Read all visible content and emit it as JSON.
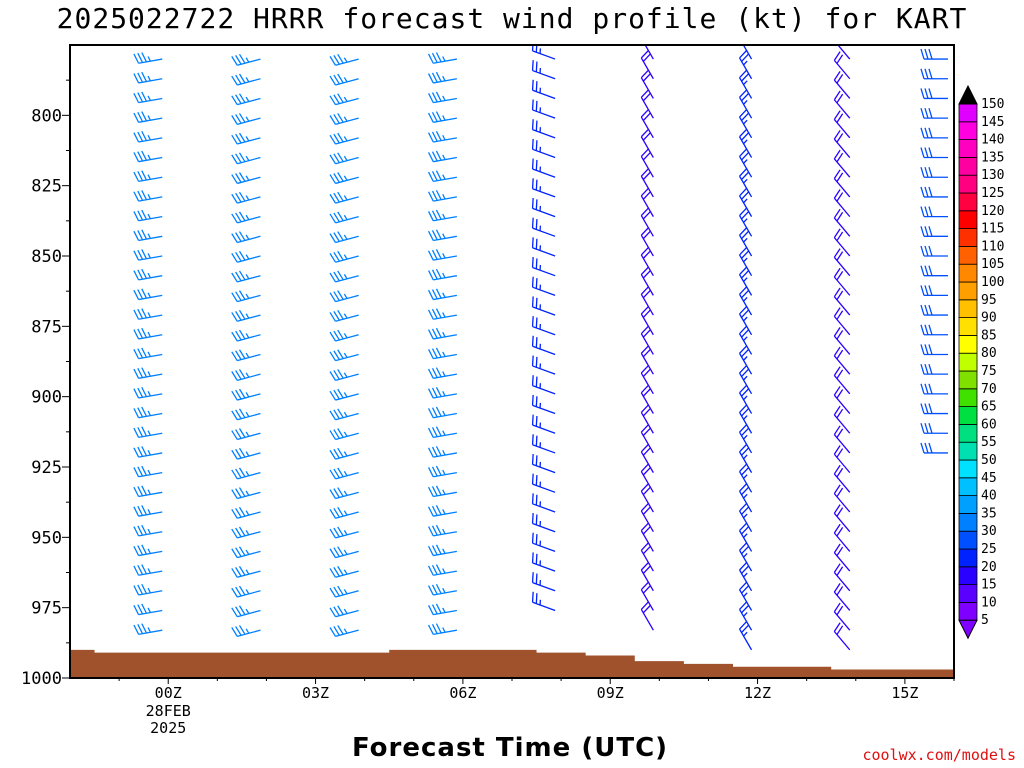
{
  "title": "2025022722 HRRR forecast wind profile (kt) for KART",
  "xlabel": "Forecast Time (UTC)",
  "credit": "coolwx.com/models",
  "chart_data": {
    "type": "wind_profile",
    "title": "2025022722 HRRR forecast wind profile (kt) for KART",
    "xlabel": "Forecast Time (UTC)",
    "y_axis": {
      "label": "",
      "ticks": [
        800,
        825,
        850,
        875,
        900,
        925,
        950,
        975,
        1000
      ],
      "range": [
        775,
        1000
      ],
      "inverted": true
    },
    "x_axis": {
      "ticks": [
        {
          "hour": 0,
          "label": "00Z",
          "sub": [
            "28FEB",
            "2025"
          ]
        },
        {
          "hour": 3,
          "label": "03Z"
        },
        {
          "hour": 6,
          "label": "06Z"
        },
        {
          "hour": 9,
          "label": "09Z"
        },
        {
          "hour": 12,
          "label": "12Z"
        },
        {
          "hour": 15,
          "label": "15Z"
        }
      ],
      "range": [
        -2,
        16
      ]
    },
    "colorbar": {
      "unit": "kt",
      "levels": [
        5,
        10,
        15,
        20,
        25,
        30,
        35,
        40,
        45,
        50,
        55,
        60,
        65,
        70,
        75,
        80,
        85,
        90,
        95,
        100,
        105,
        110,
        115,
        120,
        125,
        130,
        135,
        140,
        145,
        150
      ],
      "colors": [
        "#8000ff",
        "#5a00ff",
        "#2a00ff",
        "#0022ff",
        "#0050ff",
        "#0080ff",
        "#00a0ff",
        "#00c0ff",
        "#00e0ff",
        "#00e0b0",
        "#00e080",
        "#00e040",
        "#40e000",
        "#80e000",
        "#c0ff00",
        "#ffff00",
        "#ffe000",
        "#ffc000",
        "#ffa000",
        "#ff8800",
        "#ff6000",
        "#ff3000",
        "#ff0000",
        "#ff0040",
        "#ff0080",
        "#ff00a0",
        "#ff00c0",
        "#ff00e0",
        "#e000ff",
        "#000000"
      ]
    },
    "terrain_color": "#a0522d",
    "surface_pressure": [
      {
        "hour": -2.0,
        "p": 990
      },
      {
        "hour": -1.5,
        "p": 991
      },
      {
        "hour": 4.5,
        "p": 990
      },
      {
        "hour": 7.5,
        "p": 991
      },
      {
        "hour": 8.5,
        "p": 992
      },
      {
        "hour": 9.5,
        "p": 994
      },
      {
        "hour": 10.5,
        "p": 995
      },
      {
        "hour": 11.5,
        "p": 996
      },
      {
        "hour": 13.5,
        "p": 997
      },
      {
        "hour": 16.0,
        "p": 997
      }
    ],
    "columns": [
      {
        "hour": 0,
        "top": 780,
        "bottom": 988,
        "dir": 260,
        "speed": 35
      },
      {
        "hour": 2,
        "top": 780,
        "bottom": 988,
        "dir": 255,
        "speed": 35
      },
      {
        "hour": 4,
        "top": 780,
        "bottom": 988,
        "dir": 255,
        "speed": 35
      },
      {
        "hour": 6,
        "top": 780,
        "bottom": 988,
        "dir": 260,
        "speed": 35
      },
      {
        "hour": 8,
        "top": 780,
        "bottom": 981,
        "dir": 290,
        "speed": 25
      },
      {
        "hour": 10,
        "top": 780,
        "bottom": 983,
        "dir": 330,
        "speed": 20
      },
      {
        "hour": 12,
        "top": 780,
        "bottom": 993,
        "dir": 330,
        "speed": 25
      },
      {
        "hour": 14,
        "top": 780,
        "bottom": 993,
        "dir": 320,
        "speed": 20
      },
      {
        "hour": 16,
        "top": 780,
        "bottom": 922,
        "dir": 270,
        "speed": 30
      }
    ]
  }
}
